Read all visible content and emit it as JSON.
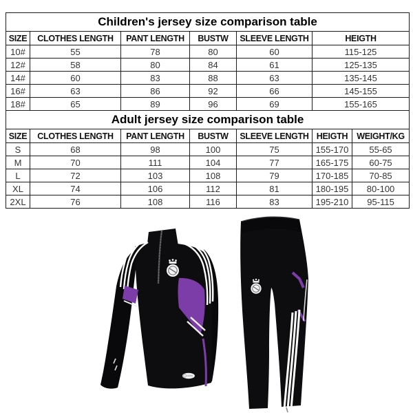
{
  "page": {
    "background": "#ffffff",
    "border_color": "#1c1c1c"
  },
  "children_table": {
    "title": "Children's jersey size comparison table",
    "headers": [
      "SIZE",
      "CLOTHES LENGTH",
      "PANT LENGTH",
      "BUSTW",
      "SLEEVE LENGTH",
      "HEIGTH"
    ],
    "rows": [
      [
        "10#",
        "55",
        "78",
        "80",
        "60",
        "115-125"
      ],
      [
        "12#",
        "58",
        "80",
        "84",
        "61",
        "125-135"
      ],
      [
        "14#",
        "60",
        "83",
        "88",
        "63",
        "135-145"
      ],
      [
        "16#",
        "63",
        "86",
        "92",
        "66",
        "145-155"
      ],
      [
        "18#",
        "65",
        "89",
        "96",
        "69",
        "155-165"
      ]
    ]
  },
  "adult_table": {
    "title": "Adult jersey size comparison table",
    "headers": [
      "SIZE",
      "CLOTHES LENGTH",
      "PANT LENGTH",
      "BUSTW",
      "SLEEVE LENGTH",
      "HEIGTH",
      "WEIGHT/KG"
    ],
    "rows": [
      [
        "S",
        "68",
        "98",
        "100",
        "75",
        "155-170",
        "55-65"
      ],
      [
        "M",
        "70",
        "111",
        "104",
        "77",
        "165-175",
        "60-75"
      ],
      [
        "L",
        "72",
        "103",
        "108",
        "79",
        "170-185",
        "70-85"
      ],
      [
        "XL",
        "74",
        "106",
        "112",
        "81",
        "180-195",
        "80-100"
      ],
      [
        "2XL",
        "76",
        "108",
        "116",
        "83",
        "195-210",
        "95-115"
      ]
    ]
  },
  "product_image": {
    "description": "Black Real Madrid training tracksuit set: quarter-zip long-sleeve top and tapered pants, white three-stripe shoulder and leg details, purple side accents, white club crest on chest and left pant leg",
    "colors": {
      "garment": "#0d0d0f",
      "accent_purple": "#7d3da8",
      "stripes": "#ffffff",
      "background": "#ffffff"
    }
  }
}
